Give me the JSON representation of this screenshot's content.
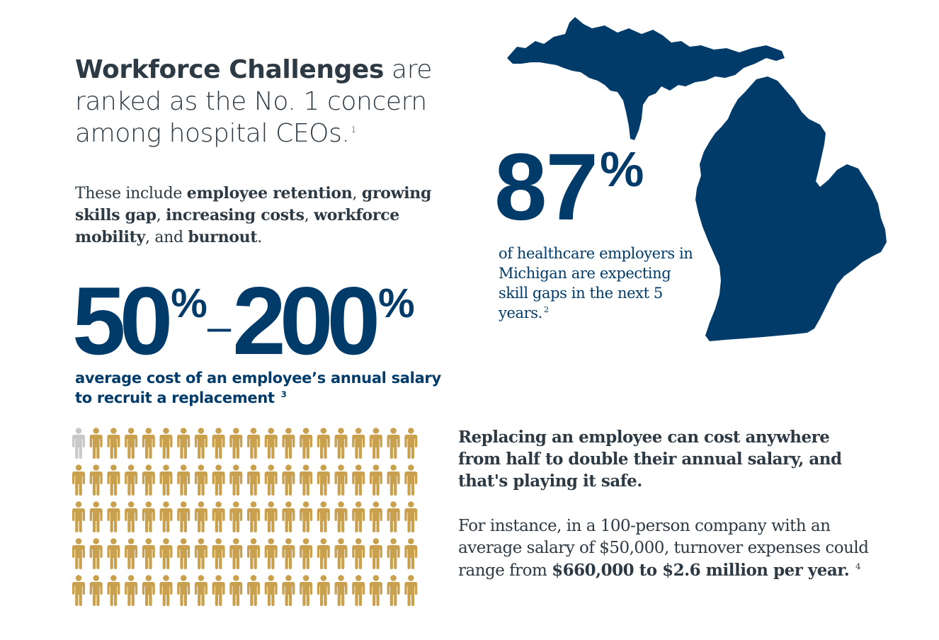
{
  "headline": {
    "strong": "Workforce Challenges",
    "rest": " are ranked as the No. 1 concern among hospital CEOs.",
    "footnote": "1"
  },
  "intro": {
    "p1": "These include ",
    "b1": "employee retention",
    "p2": ", ",
    "b2": "growing skills gap",
    "p3": ", ",
    "b3": "increasing costs",
    "p4": ", ",
    "b4": "workforce mobility",
    "p5": ", and ",
    "b5": "burnout",
    "p6": "."
  },
  "range_stat": {
    "low": "50",
    "low_pct": "%",
    "dash": "–",
    "high": "200",
    "high_pct": "%",
    "caption": "average cost of an employee’s annual salary to recruit a replacement",
    "footnote": "3"
  },
  "people_grid": {
    "rows": 5,
    "cols": 20,
    "highlighted_count": 1,
    "color_main": "#c9a04e",
    "color_highlight": "#c8c8c8",
    "icon": "person-icon"
  },
  "map": {
    "region": "Michigan",
    "color": "#003b6a"
  },
  "stat87": {
    "value": "87",
    "pct": "%",
    "caption": "of healthcare employers in Michigan are expecting skill gaps in the next 5 years.",
    "footnote": "2"
  },
  "replace": {
    "text": "Replacing an employee can cost anywhere from half to double their annual salary, and that's playing it safe."
  },
  "instance": {
    "p1": "For instance, in a 100-person company with an average salary of $50,000, turnover expenses could range from ",
    "b1": "$660,000 to $2.6 million per year.",
    "footnote": "4"
  }
}
